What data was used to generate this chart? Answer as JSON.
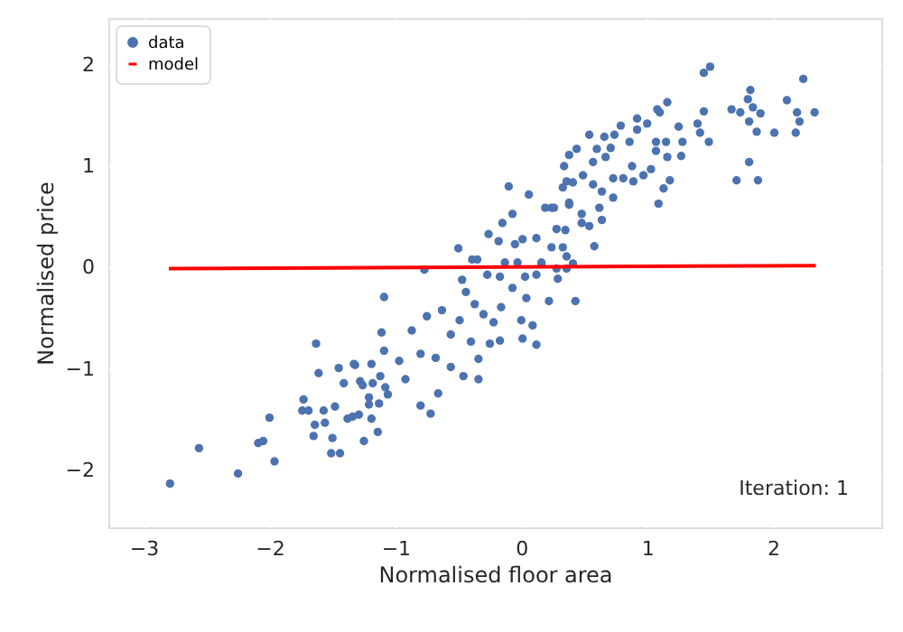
{
  "chart_data": {
    "type": "scatter",
    "xlabel": "Normalised floor area",
    "ylabel": "Normalised price",
    "xlim": [
      -3.28,
      2.86
    ],
    "ylim": [
      -2.56,
      2.46
    ],
    "xticks": [
      -3,
      -2,
      -1,
      0,
      1,
      2
    ],
    "yticks": [
      -2,
      -1,
      0,
      1,
      2
    ],
    "grid": true,
    "legend": "top left",
    "annotations": [
      "Iteration:   1"
    ],
    "series": [
      {
        "name": "data",
        "marker": "circle",
        "color": "#4c72b0",
        "x": [
          -2.79,
          -2.56,
          -2.25,
          -2.09,
          -2.05,
          -1.96,
          -2.0,
          -1.63,
          -1.61,
          -1.73,
          -1.74,
          -1.69,
          -1.64,
          -1.65,
          -1.57,
          -1.56,
          -1.5,
          -1.51,
          -1.44,
          -1.48,
          -1.45,
          -1.41,
          -1.32,
          -1.19,
          -1.38,
          -1.34,
          -1.29,
          -1.25,
          -1.19,
          -1.14,
          -1.09,
          -1.11,
          -1.09,
          -1.28,
          -1.18,
          -1.12,
          -1.08,
          -1.21,
          -1.13,
          -1.21,
          -0.8,
          -0.72,
          -0.66,
          -0.87,
          -0.75,
          -0.63,
          -0.5,
          -0.77,
          -0.47,
          -0.44,
          -0.39,
          -0.35,
          -0.49,
          -0.56,
          -0.4,
          -0.34,
          -0.34,
          -0.46,
          -0.56,
          -0.68,
          -0.8,
          -0.97,
          -0.92,
          -0.26,
          -0.18,
          -0.15,
          -0.07,
          -0.1,
          0.06,
          -0.05,
          0.01,
          0.12,
          -0.27,
          -0.17,
          -0.13,
          -0.03,
          0.03,
          0.12,
          0.16,
          0.24,
          0.28,
          0.36,
          0.43,
          0.22,
          0.04,
          -0.07,
          -0.16,
          -0.22,
          -0.17,
          0.0,
          0.09,
          0.12,
          0.01,
          -0.3,
          -0.37,
          -0.25,
          -1.26,
          -1.06,
          -1.33,
          0.24,
          0.33,
          0.38,
          0.48,
          1.5,
          1.45,
          2.24,
          2.11,
          2.33,
          2.19,
          2.21,
          2.18,
          2.01,
          1.82,
          1.8,
          1.67,
          1.74,
          1.84,
          1.9,
          1.81,
          1.87,
          1.81,
          1.71,
          1.88,
          1.45,
          1.4,
          1.42,
          1.49,
          1.28,
          1.27,
          1.25,
          1.16,
          1.1,
          1.08,
          1.0,
          0.92,
          0.92,
          0.86,
          0.79,
          0.74,
          0.66,
          0.54,
          0.71,
          0.6,
          0.67,
          0.57,
          0.44,
          0.38,
          0.34,
          0.36,
          0.41,
          0.49,
          0.57,
          0.64,
          0.73,
          0.81,
          0.88,
          0.97,
          1.03,
          1.07,
          1.07,
          1.15,
          1.16,
          1.13,
          1.09,
          1.18,
          0.89,
          0.73,
          0.62,
          0.64,
          0.54,
          0.48,
          0.38,
          0.26,
          0.19,
          0.28,
          0.35,
          0.58,
          0.33,
          0.41,
          0.36,
          0.29,
          0.16
        ],
        "values": [
          -2.13,
          -1.78,
          -2.03,
          -1.73,
          -1.71,
          -1.91,
          -1.48,
          -0.75,
          -1.04,
          -1.3,
          -1.41,
          -1.41,
          -1.55,
          -1.66,
          -1.41,
          -1.53,
          -1.68,
          -1.83,
          -1.83,
          -1.37,
          -0.99,
          -1.14,
          -0.96,
          -0.95,
          -1.49,
          -1.47,
          -1.45,
          -1.71,
          -1.49,
          -1.62,
          -0.29,
          -0.64,
          -0.82,
          -1.12,
          -1.14,
          -1.07,
          -1.18,
          -1.35,
          -1.34,
          -1.28,
          -1.36,
          -1.44,
          -1.24,
          -0.62,
          -0.48,
          -0.42,
          0.19,
          -0.02,
          -0.12,
          -0.24,
          0.08,
          0.08,
          -0.52,
          -0.66,
          -0.73,
          -0.9,
          -1.1,
          -1.07,
          -0.98,
          -0.89,
          -0.85,
          -0.92,
          -1.1,
          0.33,
          0.26,
          0.44,
          0.53,
          0.8,
          0.72,
          0.23,
          0.28,
          0.29,
          -0.07,
          -0.09,
          0.05,
          0.05,
          -0.09,
          -0.07,
          0.05,
          0.2,
          -0.01,
          0.11,
          -0.33,
          -0.33,
          -0.3,
          -0.2,
          -0.39,
          -0.54,
          -0.72,
          -0.52,
          -0.57,
          -0.76,
          -0.7,
          -0.46,
          -0.36,
          -0.75,
          -1.16,
          -1.25,
          -0.95,
          0.59,
          0.79,
          0.62,
          0.44,
          1.98,
          1.92,
          1.86,
          1.65,
          1.53,
          1.53,
          1.44,
          1.33,
          1.33,
          1.75,
          1.66,
          1.56,
          1.53,
          1.58,
          1.52,
          1.44,
          1.34,
          1.04,
          0.86,
          0.86,
          1.54,
          1.42,
          1.33,
          1.24,
          1.24,
          1.1,
          1.39,
          1.63,
          1.53,
          1.56,
          1.42,
          1.47,
          1.36,
          1.24,
          1.4,
          1.31,
          1.29,
          1.31,
          1.18,
          1.17,
          1.09,
          1.04,
          1.17,
          1.11,
          1.0,
          0.85,
          0.84,
          0.91,
          0.82,
          0.75,
          0.88,
          0.88,
          1.0,
          0.91,
          0.97,
          1.24,
          1.15,
          1.24,
          1.09,
          0.78,
          0.63,
          0.86,
          0.85,
          0.69,
          0.59,
          0.47,
          0.41,
          0.53,
          0.64,
          0.59,
          0.59,
          0.38,
          0.37,
          0.21,
          0.2,
          0.04,
          -0.01,
          -0.11,
          0.04
        ]
      },
      {
        "name": "model",
        "type": "line",
        "color": "#ff0000",
        "x": [
          -2.8,
          2.34
        ],
        "values": [
          -0.01,
          0.02
        ]
      }
    ]
  }
}
